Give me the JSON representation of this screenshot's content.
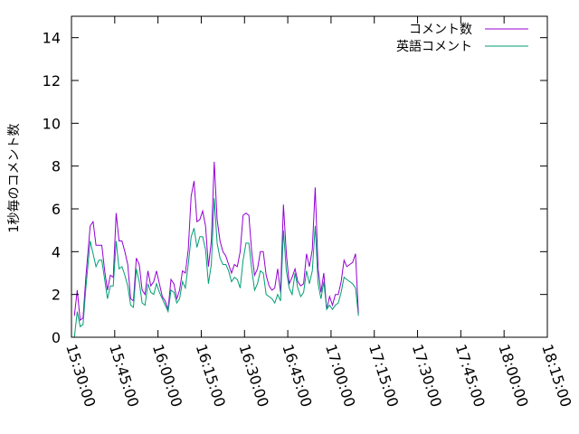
{
  "chart_data": {
    "type": "line",
    "title": "",
    "xlabel": "",
    "ylabel": "1秒毎のコメント数",
    "xlim": [
      "15:30:00",
      "18:15:00"
    ],
    "ylim": [
      0,
      15
    ],
    "x_ticks": [
      "15:30:00",
      "15:45:00",
      "16:00:00",
      "16:15:00",
      "16:30:00",
      "16:45:00",
      "17:00:00",
      "17:15:00",
      "17:30:00",
      "17:45:00",
      "18:00:00",
      "18:15:00"
    ],
    "y_ticks": [
      0,
      2,
      4,
      6,
      8,
      10,
      12,
      14
    ],
    "grid": false,
    "legend_position": "top-right",
    "series": [
      {
        "name": "コメント数",
        "color": "#9400d3",
        "points": [
          [
            "15:31:00",
            1.0
          ],
          [
            "15:32:00",
            2.2
          ],
          [
            "15:33:00",
            0.8
          ],
          [
            "15:34:00",
            0.9
          ],
          [
            "15:35:00",
            2.8
          ],
          [
            "15:36:30",
            5.2
          ],
          [
            "15:37:30",
            5.4
          ],
          [
            "15:38:30",
            4.3
          ],
          [
            "15:39:30",
            4.3
          ],
          [
            "15:40:30",
            4.3
          ],
          [
            "15:41:30",
            3.1
          ],
          [
            "15:42:30",
            2.2
          ],
          [
            "15:43:30",
            2.9
          ],
          [
            "15:44:30",
            2.8
          ],
          [
            "15:45:30",
            5.8
          ],
          [
            "15:46:30",
            4.5
          ],
          [
            "15:47:30",
            4.5
          ],
          [
            "15:48:30",
            4.0
          ],
          [
            "15:49:30",
            3.4
          ],
          [
            "15:50:30",
            1.8
          ],
          [
            "15:51:30",
            1.7
          ],
          [
            "15:52:30",
            3.7
          ],
          [
            "15:53:30",
            3.4
          ],
          [
            "15:54:30",
            2.2
          ],
          [
            "15:55:30",
            2.0
          ],
          [
            "15:56:30",
            3.1
          ],
          [
            "15:57:30",
            2.4
          ],
          [
            "15:58:30",
            2.6
          ],
          [
            "15:59:30",
            3.1
          ],
          [
            "16:00:30",
            2.5
          ],
          [
            "16:01:30",
            1.9
          ],
          [
            "16:02:30",
            1.7
          ],
          [
            "16:03:30",
            1.3
          ],
          [
            "16:04:30",
            2.7
          ],
          [
            "16:05:30",
            2.5
          ],
          [
            "16:06:30",
            1.8
          ],
          [
            "16:07:30",
            2.2
          ],
          [
            "16:08:30",
            3.1
          ],
          [
            "16:09:30",
            3.0
          ],
          [
            "16:10:30",
            4.1
          ],
          [
            "16:11:30",
            6.6
          ],
          [
            "16:12:30",
            7.3
          ],
          [
            "16:13:30",
            5.4
          ],
          [
            "16:14:30",
            5.5
          ],
          [
            "16:15:30",
            5.9
          ],
          [
            "16:16:30",
            5.2
          ],
          [
            "16:17:30",
            3.3
          ],
          [
            "16:18:30",
            4.5
          ],
          [
            "16:19:30",
            8.2
          ],
          [
            "16:20:30",
            5.5
          ],
          [
            "16:21:30",
            4.5
          ],
          [
            "16:22:30",
            4.0
          ],
          [
            "16:23:30",
            3.8
          ],
          [
            "16:24:30",
            3.4
          ],
          [
            "16:25:30",
            3.0
          ],
          [
            "16:26:30",
            3.4
          ],
          [
            "16:27:30",
            3.3
          ],
          [
            "16:28:30",
            4.0
          ],
          [
            "16:29:30",
            5.7
          ],
          [
            "16:30:30",
            5.8
          ],
          [
            "16:31:30",
            5.7
          ],
          [
            "16:32:30",
            4.0
          ],
          [
            "16:33:30",
            2.9
          ],
          [
            "16:34:30",
            3.2
          ],
          [
            "16:35:30",
            4.0
          ],
          [
            "16:36:30",
            4.0
          ],
          [
            "16:37:30",
            2.9
          ],
          [
            "16:38:30",
            2.4
          ],
          [
            "16:39:30",
            2.2
          ],
          [
            "16:40:30",
            2.3
          ],
          [
            "16:41:30",
            3.2
          ],
          [
            "16:42:30",
            2.1
          ],
          [
            "16:43:30",
            6.2
          ],
          [
            "16:44:30",
            3.9
          ],
          [
            "16:45:30",
            2.5
          ],
          [
            "16:46:30",
            2.8
          ],
          [
            "16:47:30",
            3.2
          ],
          [
            "16:48:30",
            2.6
          ],
          [
            "16:49:30",
            2.4
          ],
          [
            "16:50:30",
            2.5
          ],
          [
            "16:51:30",
            3.9
          ],
          [
            "16:52:30",
            3.3
          ],
          [
            "16:53:30",
            4.1
          ],
          [
            "16:54:30",
            7.0
          ],
          [
            "16:55:30",
            3.2
          ],
          [
            "16:56:30",
            2.1
          ],
          [
            "16:57:30",
            3.0
          ],
          [
            "16:58:30",
            1.3
          ],
          [
            "16:59:30",
            1.9
          ],
          [
            "17:00:30",
            1.5
          ],
          [
            "17:01:30",
            2.0
          ],
          [
            "17:02:30",
            2.0
          ],
          [
            "17:03:30",
            2.6
          ],
          [
            "17:04:30",
            3.6
          ],
          [
            "17:05:30",
            3.3
          ],
          [
            "17:06:30",
            3.4
          ],
          [
            "17:07:30",
            3.5
          ],
          [
            "17:08:30",
            3.9
          ],
          [
            "17:09:30",
            1.1
          ]
        ]
      },
      {
        "name": "英語コメント",
        "color": "#009e73",
        "points": [
          [
            "15:31:00",
            0.0
          ],
          [
            "15:32:00",
            1.2
          ],
          [
            "15:33:00",
            0.5
          ],
          [
            "15:34:00",
            0.6
          ],
          [
            "15:35:00",
            2.3
          ],
          [
            "15:36:30",
            4.5
          ],
          [
            "15:37:30",
            3.9
          ],
          [
            "15:38:30",
            3.3
          ],
          [
            "15:39:30",
            3.6
          ],
          [
            "15:40:30",
            3.6
          ],
          [
            "15:41:30",
            2.7
          ],
          [
            "15:42:30",
            1.8
          ],
          [
            "15:43:30",
            2.4
          ],
          [
            "15:44:30",
            2.4
          ],
          [
            "15:45:30",
            4.5
          ],
          [
            "15:46:30",
            3.2
          ],
          [
            "15:47:30",
            3.3
          ],
          [
            "15:48:30",
            2.9
          ],
          [
            "15:49:30",
            2.4
          ],
          [
            "15:50:30",
            1.5
          ],
          [
            "15:51:30",
            1.4
          ],
          [
            "15:52:30",
            3.2
          ],
          [
            "15:53:30",
            2.6
          ],
          [
            "15:54:30",
            1.6
          ],
          [
            "15:55:30",
            1.5
          ],
          [
            "15:56:30",
            2.5
          ],
          [
            "15:57:30",
            2.1
          ],
          [
            "15:58:30",
            2.0
          ],
          [
            "15:59:30",
            2.5
          ],
          [
            "16:00:30",
            2.1
          ],
          [
            "16:01:30",
            1.8
          ],
          [
            "16:02:30",
            1.5
          ],
          [
            "16:03:30",
            1.2
          ],
          [
            "16:04:30",
            2.2
          ],
          [
            "16:05:30",
            2.1
          ],
          [
            "16:06:30",
            1.6
          ],
          [
            "16:07:30",
            1.8
          ],
          [
            "16:08:30",
            2.6
          ],
          [
            "16:09:30",
            2.3
          ],
          [
            "16:10:30",
            3.4
          ],
          [
            "16:11:30",
            4.7
          ],
          [
            "16:12:30",
            5.1
          ],
          [
            "16:13:30",
            4.2
          ],
          [
            "16:14:30",
            4.7
          ],
          [
            "16:15:30",
            4.7
          ],
          [
            "16:16:30",
            4.1
          ],
          [
            "16:17:30",
            2.5
          ],
          [
            "16:18:30",
            3.4
          ],
          [
            "16:19:30",
            6.5
          ],
          [
            "16:20:30",
            4.4
          ],
          [
            "16:21:30",
            3.7
          ],
          [
            "16:22:30",
            3.4
          ],
          [
            "16:23:30",
            3.4
          ],
          [
            "16:24:30",
            3.1
          ],
          [
            "16:25:30",
            2.6
          ],
          [
            "16:26:30",
            2.8
          ],
          [
            "16:27:30",
            2.7
          ],
          [
            "16:28:30",
            2.3
          ],
          [
            "16:29:30",
            3.6
          ],
          [
            "16:30:30",
            4.4
          ],
          [
            "16:31:30",
            4.4
          ],
          [
            "16:32:30",
            3.2
          ],
          [
            "16:33:30",
            2.2
          ],
          [
            "16:34:30",
            2.5
          ],
          [
            "16:35:30",
            3.1
          ],
          [
            "16:36:30",
            3.0
          ],
          [
            "16:37:30",
            2.0
          ],
          [
            "16:38:30",
            1.9
          ],
          [
            "16:39:30",
            1.8
          ],
          [
            "16:40:30",
            1.6
          ],
          [
            "16:41:30",
            2.0
          ],
          [
            "16:42:30",
            1.7
          ],
          [
            "16:43:30",
            5.0
          ],
          [
            "16:44:30",
            3.1
          ],
          [
            "16:45:30",
            2.3
          ],
          [
            "16:46:30",
            2.0
          ],
          [
            "16:47:30",
            3.0
          ],
          [
            "16:48:30",
            2.3
          ],
          [
            "16:49:30",
            1.9
          ],
          [
            "16:50:30",
            2.1
          ],
          [
            "16:51:30",
            3.1
          ],
          [
            "16:52:30",
            2.5
          ],
          [
            "16:53:30",
            3.1
          ],
          [
            "16:54:30",
            5.2
          ],
          [
            "16:55:30",
            2.5
          ],
          [
            "16:56:30",
            1.8
          ],
          [
            "16:57:30",
            2.6
          ],
          [
            "16:58:30",
            1.3
          ],
          [
            "16:59:30",
            1.5
          ],
          [
            "17:00:30",
            1.3
          ],
          [
            "17:01:30",
            1.5
          ],
          [
            "17:02:30",
            1.6
          ],
          [
            "17:03:30",
            2.1
          ],
          [
            "17:04:30",
            2.8
          ],
          [
            "17:05:30",
            2.7
          ],
          [
            "17:06:30",
            2.6
          ],
          [
            "17:07:30",
            2.5
          ],
          [
            "17:08:30",
            2.3
          ],
          [
            "17:09:30",
            1.0
          ]
        ]
      }
    ]
  }
}
